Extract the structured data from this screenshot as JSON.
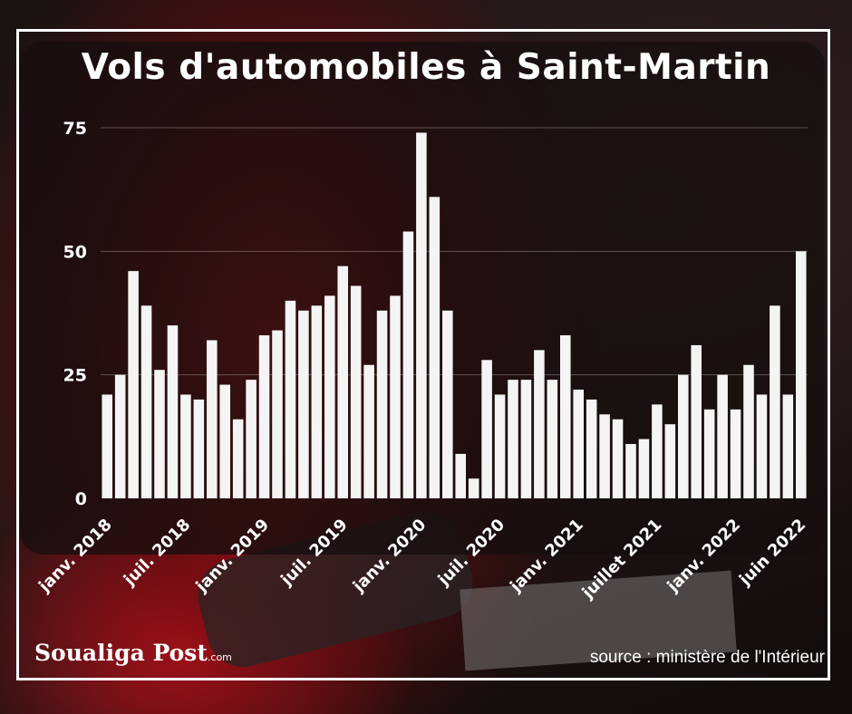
{
  "title": "Vols d'automobiles à Saint-Martin",
  "source": "source : ministère de l'Intérieur",
  "brand": {
    "name": "Soualiga Post",
    "suffix": ".com"
  },
  "colors": {
    "bar": "#f4f4f4",
    "text": "#ffffff",
    "background_accent": "#c8141e"
  },
  "chart_data": {
    "type": "bar",
    "title": "Vols d'automobiles à Saint-Martin",
    "xlabel": "",
    "ylabel": "",
    "ylim": [
      0,
      75
    ],
    "yticks": [
      0,
      25,
      50,
      75
    ],
    "grid": true,
    "values": [
      21,
      25,
      46,
      39,
      26,
      35,
      21,
      20,
      32,
      23,
      16,
      24,
      33,
      34,
      40,
      38,
      39,
      41,
      47,
      43,
      27,
      38,
      41,
      54,
      74,
      61,
      38,
      9,
      4,
      28,
      21,
      24,
      24,
      30,
      24,
      33,
      22,
      20,
      17,
      16,
      11,
      12,
      19,
      15,
      25,
      31,
      18,
      25,
      18,
      27,
      21,
      39,
      21,
      50
    ],
    "x_labels": [
      {
        "index": 0,
        "label": "janv. 2018"
      },
      {
        "index": 6,
        "label": "juil. 2018"
      },
      {
        "index": 12,
        "label": "janv. 2019"
      },
      {
        "index": 18,
        "label": "juil. 2019"
      },
      {
        "index": 24,
        "label": "janv. 2020"
      },
      {
        "index": 30,
        "label": "juil. 2020"
      },
      {
        "index": 36,
        "label": "janv. 2021"
      },
      {
        "index": 42,
        "label": "juillet 2021"
      },
      {
        "index": 48,
        "label": "janv. 2022"
      },
      {
        "index": 53,
        "label": "juin 2022"
      }
    ]
  }
}
